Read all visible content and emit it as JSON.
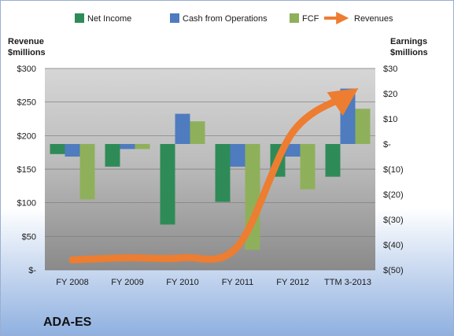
{
  "ticker": "ADA-ES",
  "chart_data": {
    "type": "bar",
    "categories": [
      "FY 2008",
      "FY 2009",
      "FY 2010",
      "FY 2011",
      "FY 2012",
      "TTM 3-2013"
    ],
    "left_axis": {
      "label_line1": "Revenue",
      "label_line2": "$millions",
      "range": [
        0,
        300
      ],
      "ticks": [
        {
          "value": 0,
          "label": "$-"
        },
        {
          "value": 50,
          "label": "$50"
        },
        {
          "value": 100,
          "label": "$100"
        },
        {
          "value": 150,
          "label": "$150"
        },
        {
          "value": 200,
          "label": "$200"
        },
        {
          "value": 250,
          "label": "$250"
        },
        {
          "value": 300,
          "label": "$300"
        }
      ]
    },
    "right_axis": {
      "label_line1": "Earnings",
      "label_line2": "$millions",
      "range": [
        -50,
        30
      ],
      "ticks": [
        {
          "value": -50,
          "label": "$(50)"
        },
        {
          "value": -40,
          "label": "$(40)"
        },
        {
          "value": -30,
          "label": "$(30)"
        },
        {
          "value": -20,
          "label": "$(20)"
        },
        {
          "value": -10,
          "label": "$(10)"
        },
        {
          "value": 0,
          "label": "$-"
        },
        {
          "value": 10,
          "label": "$10"
        },
        {
          "value": 20,
          "label": "$20"
        },
        {
          "value": 30,
          "label": "$30"
        }
      ]
    },
    "series": [
      {
        "name": "Net Income",
        "axis": "right",
        "color": "#2e8b57",
        "values": [
          -4,
          -9,
          -32,
          -23,
          -13,
          -13
        ]
      },
      {
        "name": "Cash from Operations",
        "axis": "right",
        "color": "#4f7bbf",
        "values": [
          -5,
          -2,
          12,
          -9,
          -5,
          22
        ]
      },
      {
        "name": "FCF",
        "axis": "right",
        "color": "#8fb05a",
        "values": [
          -22,
          -2,
          9,
          -42,
          -18,
          14
        ]
      },
      {
        "name": "Revenues",
        "axis": "left",
        "type": "line",
        "color": "#ed7d31",
        "values": [
          15,
          18,
          18,
          35,
          205,
          260
        ]
      }
    ],
    "grid": true,
    "legend_position": "top"
  }
}
